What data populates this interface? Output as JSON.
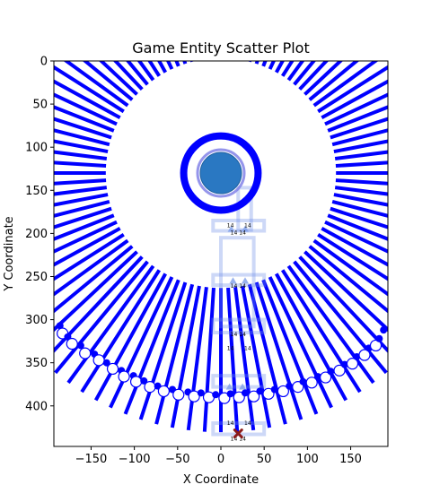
{
  "chart_data": {
    "type": "scatter",
    "title": "Game Entity Scatter Plot",
    "xlabel": "X Coordinate",
    "ylabel": "Y Coordinate",
    "xlim": [
      -193,
      193
    ],
    "ylim": [
      447,
      0
    ],
    "y_inverted": true,
    "xticks": [
      -150,
      -100,
      -50,
      0,
      50,
      100,
      150
    ],
    "yticks": [
      0,
      50,
      100,
      150,
      200,
      250,
      300,
      350,
      400
    ],
    "xtick_labels": [
      "−150",
      "−100",
      "−50",
      "0",
      "50",
      "100",
      "150"
    ],
    "ytick_labels": [
      "0",
      "50",
      "100",
      "150",
      "200",
      "250",
      "300",
      "350",
      "400"
    ],
    "grid": false,
    "radial_lines": {
      "center": [
        0,
        130
      ],
      "inner_radius": 133,
      "outer_radius": 300,
      "count": 100,
      "color": "#0000ff"
    },
    "ring": {
      "center": [
        0,
        130
      ],
      "radius": 43,
      "color": "#0000ff"
    },
    "center_marker": {
      "x": 0,
      "y": 130,
      "color": "#2a78c2",
      "outline": "#7b7be6"
    },
    "arc_points": [
      {
        "x": -186,
        "y": 307,
        "kind": "small"
      },
      {
        "x": -183,
        "y": 316,
        "kind": "open"
      },
      {
        "x": -177,
        "y": 320,
        "kind": "small"
      },
      {
        "x": -172,
        "y": 328,
        "kind": "open"
      },
      {
        "x": -162,
        "y": 330,
        "kind": "small"
      },
      {
        "x": -157,
        "y": 339,
        "kind": "open"
      },
      {
        "x": -146,
        "y": 340,
        "kind": "small"
      },
      {
        "x": -141,
        "y": 347,
        "kind": "open"
      },
      {
        "x": -132,
        "y": 350,
        "kind": "small"
      },
      {
        "x": -125,
        "y": 357,
        "kind": "open"
      },
      {
        "x": -115,
        "y": 359,
        "kind": "small"
      },
      {
        "x": -112,
        "y": 366,
        "kind": "open"
      },
      {
        "x": -101,
        "y": 365,
        "kind": "small"
      },
      {
        "x": -98,
        "y": 372,
        "kind": "open"
      },
      {
        "x": -89,
        "y": 371,
        "kind": "small"
      },
      {
        "x": -82,
        "y": 378,
        "kind": "open"
      },
      {
        "x": -73,
        "y": 377,
        "kind": "small"
      },
      {
        "x": -66,
        "y": 383,
        "kind": "open"
      },
      {
        "x": -56,
        "y": 381,
        "kind": "small"
      },
      {
        "x": -49,
        "y": 387,
        "kind": "open"
      },
      {
        "x": -38,
        "y": 384,
        "kind": "small"
      },
      {
        "x": -31,
        "y": 389,
        "kind": "open"
      },
      {
        "x": -23,
        "y": 385,
        "kind": "small"
      },
      {
        "x": -14,
        "y": 390,
        "kind": "open"
      },
      {
        "x": -6,
        "y": 387,
        "kind": "small"
      },
      {
        "x": 4,
        "y": 391,
        "kind": "open"
      },
      {
        "x": 11,
        "y": 386,
        "kind": "small"
      },
      {
        "x": 21,
        "y": 390,
        "kind": "open"
      },
      {
        "x": 28,
        "y": 385,
        "kind": "small"
      },
      {
        "x": 38,
        "y": 389,
        "kind": "open"
      },
      {
        "x": 45,
        "y": 383,
        "kind": "small"
      },
      {
        "x": 55,
        "y": 386,
        "kind": "open"
      },
      {
        "x": 62,
        "y": 381,
        "kind": "small"
      },
      {
        "x": 72,
        "y": 383,
        "kind": "open"
      },
      {
        "x": 79,
        "y": 377,
        "kind": "small"
      },
      {
        "x": 89,
        "y": 378,
        "kind": "open"
      },
      {
        "x": 95,
        "y": 372,
        "kind": "small"
      },
      {
        "x": 105,
        "y": 373,
        "kind": "open"
      },
      {
        "x": 112,
        "y": 366,
        "kind": "small"
      },
      {
        "x": 121,
        "y": 367,
        "kind": "open"
      },
      {
        "x": 127,
        "y": 360,
        "kind": "small"
      },
      {
        "x": 137,
        "y": 359,
        "kind": "open"
      },
      {
        "x": 143,
        "y": 352,
        "kind": "small"
      },
      {
        "x": 152,
        "y": 351,
        "kind": "open"
      },
      {
        "x": 157,
        "y": 343,
        "kind": "small"
      },
      {
        "x": 166,
        "y": 341,
        "kind": "open"
      },
      {
        "x": 171,
        "y": 333,
        "kind": "small"
      },
      {
        "x": 179,
        "y": 330,
        "kind": "open"
      },
      {
        "x": 183,
        "y": 322,
        "kind": "small"
      },
      {
        "x": 188,
        "y": 312,
        "kind": "small"
      }
    ],
    "overlay_boxes": [
      {
        "x0": 20,
        "y0": 147,
        "x1": 35,
        "y1": 196
      },
      {
        "x0": -9,
        "y0": 185,
        "x1": 50,
        "y1": 197
      },
      {
        "x0": 0,
        "y0": 205,
        "x1": 38,
        "y1": 308
      },
      {
        "x0": -9,
        "y0": 248,
        "x1": 50,
        "y1": 260
      },
      {
        "x0": -9,
        "y0": 300,
        "x1": 50,
        "y1": 315
      },
      {
        "x0": -9,
        "y0": 365,
        "x1": 50,
        "y1": 378
      },
      {
        "x0": -9,
        "y0": 420,
        "x1": 50,
        "y1": 433
      }
    ],
    "small_markers": [
      {
        "x": 12,
        "y": 195
      },
      {
        "x": 28,
        "y": 195
      },
      {
        "x": 14,
        "y": 255
      },
      {
        "x": 28,
        "y": 255
      },
      {
        "x": 10,
        "y": 378
      },
      {
        "x": 25,
        "y": 378
      }
    ],
    "annotations": [
      {
        "x": 11,
        "y": 193,
        "text": "14"
      },
      {
        "x": 31,
        "y": 193,
        "text": "14"
      },
      {
        "x": 15,
        "y": 201,
        "text": "14"
      },
      {
        "x": 25,
        "y": 201,
        "text": "14"
      },
      {
        "x": 15,
        "y": 263,
        "text": "14"
      },
      {
        "x": 25,
        "y": 263,
        "text": "14"
      },
      {
        "x": 15,
        "y": 319,
        "text": "14"
      },
      {
        "x": 25,
        "y": 319,
        "text": "14"
      },
      {
        "x": 11,
        "y": 335,
        "text": "14"
      },
      {
        "x": 31,
        "y": 335,
        "text": "14"
      },
      {
        "x": 11,
        "y": 422,
        "text": "14"
      },
      {
        "x": 31,
        "y": 422,
        "text": "14"
      },
      {
        "x": 15,
        "y": 440,
        "text": "14"
      },
      {
        "x": 25,
        "y": 440,
        "text": "14"
      }
    ],
    "target_marker": {
      "x": 20,
      "y": 432,
      "color": "#8b1a1a"
    }
  }
}
